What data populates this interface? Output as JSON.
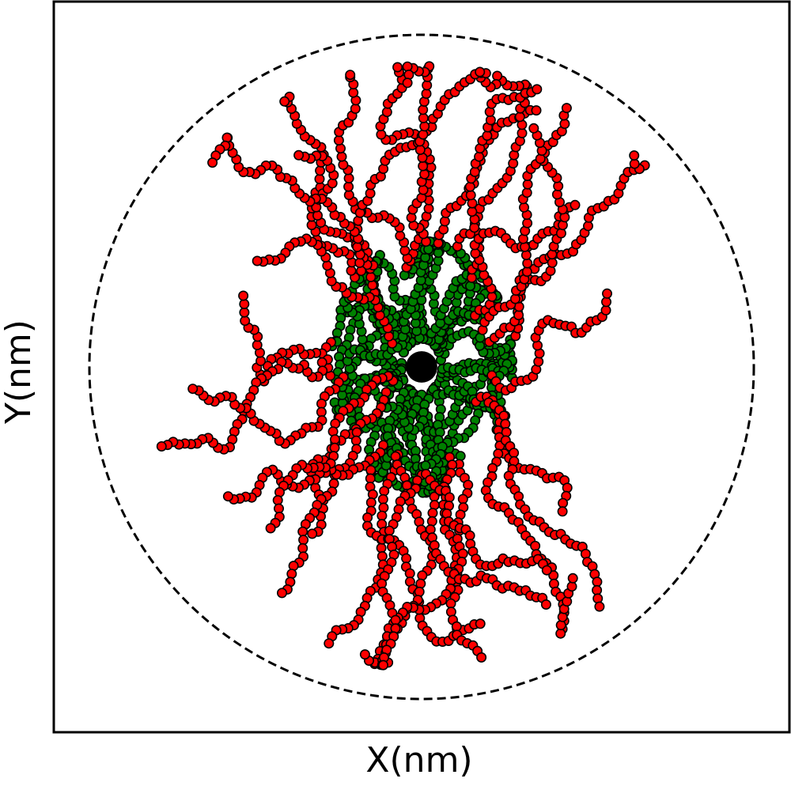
{
  "chart_data": {
    "type": "scatter",
    "title": "",
    "xlabel": "X(nm)",
    "ylabel": "Y(nm)",
    "xlim": [
      -10.5,
      10.5
    ],
    "ylim": [
      -10.5,
      10.5
    ],
    "grid": false,
    "ticks": false,
    "core": {
      "x": 0,
      "y": 0,
      "radius": 0.45,
      "color": "#000000"
    },
    "boundary_circle": {
      "x": 0,
      "y": 0,
      "radius": 9.5,
      "style": "dashed",
      "color": "#000000"
    },
    "series": [
      {
        "color": "#008000",
        "role": "inner-block",
        "seed": 7,
        "chains": 34,
        "beads_per_chain": 22,
        "step": 0.23,
        "max_radius": 3.6
      },
      {
        "color": "#ff0000",
        "role": "outer-block",
        "seed": 19,
        "chains": 34,
        "beads_per_chain": 30,
        "step": 0.24,
        "start_radius": 2.0
      }
    ],
    "bead_radius": 0.13,
    "spread_x": 0.72,
    "spread_y": 1.0
  }
}
